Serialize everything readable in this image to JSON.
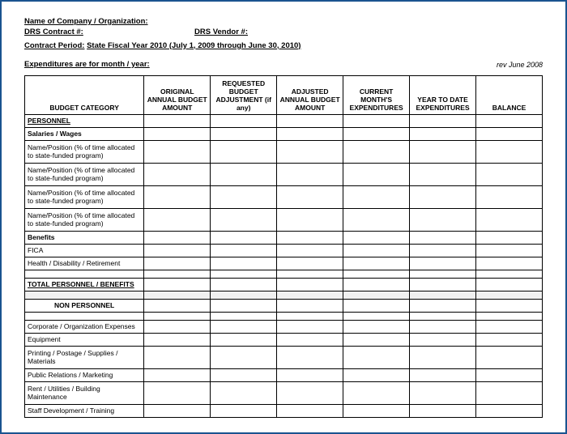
{
  "header": {
    "company_label": "Name of Company / Organization:",
    "contract_label": "DRS Contract #:",
    "vendor_label": "DRS Vendor #:",
    "period_label": "Contract Period:",
    "period_value": "State Fiscal Year 2010 (July 1, 2009 through June 30, 2010)",
    "expenditures_label": "Expenditures are for month / year:",
    "revision": "rev June 2008"
  },
  "columns": {
    "category": "BUDGET CATEGORY",
    "original": "ORIGINAL ANNUAL BUDGET AMOUNT",
    "requested": "REQUESTED BUDGET ADJUSTMENT (if any)",
    "adjusted": "ADJUSTED ANNUAL BUDGET AMOUNT",
    "current": "CURRENT MONTH'S EXPENDITURES",
    "ytd": "YEAR TO DATE EXPENDITURES",
    "balance": "BALANCE"
  },
  "sections": {
    "personnel": "PERSONNEL",
    "salaries": "Salaries / Wages",
    "position_row": "Name/Position (% of time allocated to state-funded program)",
    "benefits": "Benefits",
    "fica": "FICA",
    "health": "Health / Disability / Retirement",
    "total_personnel": "TOTAL PERSONNEL / BENEFITS",
    "nonpersonnel": "NON PERSONNEL",
    "corporate": "Corporate / Organization Expenses",
    "equipment": "Equipment",
    "printing": "Printing / Postage / Supplies / Materials",
    "public_rel": "Public Relations / Marketing",
    "rent": "Rent / Utilities / Building Maintenance",
    "staff_dev": "Staff Development / Training"
  },
  "styling": {
    "border_color": "#000000",
    "frame_color": "#1a5490",
    "gray_fill": "#f0f0f0",
    "font_family": "Arial",
    "header_fontsize": 9.5,
    "cell_fontsize": 8.5
  }
}
